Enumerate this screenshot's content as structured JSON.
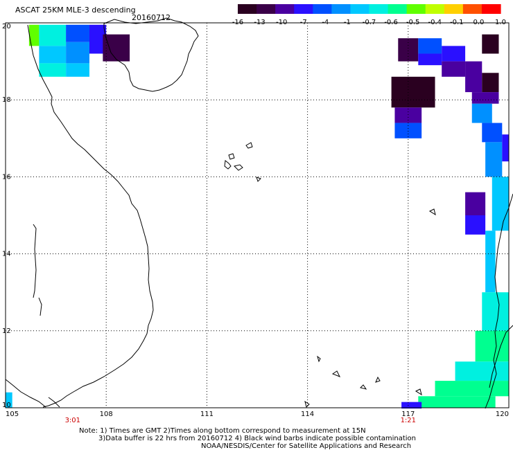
{
  "header": {
    "product": "ASCAT 25KM MLE-3 descending",
    "date": "20160712"
  },
  "colorbar": {
    "labels": [
      "-16",
      "-13",
      "-10",
      "-7",
      "-4",
      "-1",
      "-0.7",
      "-0.6",
      "-0.5",
      "-0.4",
      "-0.1",
      "0.0",
      "1.0"
    ],
    "colors": [
      "#2a0020",
      "#3a0048",
      "#4a00a0",
      "#2a10ff",
      "#0050ff",
      "#0090ff",
      "#00c8ff",
      "#00f0e0",
      "#00ff90",
      "#60ff00",
      "#c0ff00",
      "#ffd000",
      "#ff5000",
      "#ff0000"
    ]
  },
  "map": {
    "lon_labels": [
      "105",
      "108",
      "111",
      "114",
      "117",
      "120"
    ],
    "lat_labels": [
      "20",
      "18",
      "16",
      "14",
      "12",
      "10"
    ],
    "pass_times": [
      {
        "label": "3:01",
        "lon": 107
      },
      {
        "label": "1:21",
        "lon": 117
      }
    ]
  },
  "footer": {
    "line1": "Note: 1) Times are GMT 2)Times along bottom correspond to measurement at 15N",
    "line2": "3)Data buffer is 22 hrs from 20160712 4) Black wind barbs indicate possible contamination",
    "line3": "NOAA/NESDIS/Center for Satellite Applications and Research"
  }
}
